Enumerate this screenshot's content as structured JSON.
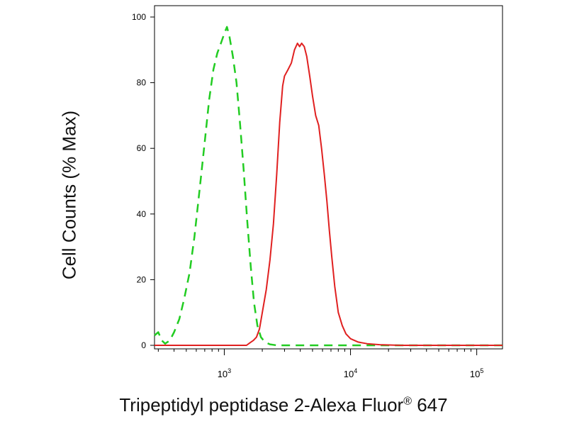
{
  "chart_data": {
    "type": "line",
    "ylabel": "Cell Counts (% Max)",
    "xlabel": {
      "text": "Tripeptidyl peptidase 2-Alexa Fluor",
      "superscript": "®",
      "suffix": " 647"
    },
    "x_scale": "log",
    "xlim": [
      280,
      160000
    ],
    "ylim": [
      0,
      100
    ],
    "y_ticks": [
      0,
      20,
      40,
      60,
      80,
      100
    ],
    "x_ticks": [
      {
        "value": 1000,
        "base": "10",
        "exp": "3"
      },
      {
        "value": 10000,
        "base": "10",
        "exp": "4"
      },
      {
        "value": 100000,
        "base": "10",
        "exp": "5"
      }
    ],
    "grid": false,
    "series": [
      {
        "color": "#22cc22",
        "style": "dashed",
        "points": [
          [
            280,
            3
          ],
          [
            300,
            4
          ],
          [
            320,
            1.5
          ],
          [
            340,
            0.5
          ],
          [
            370,
            1.5
          ],
          [
            400,
            4
          ],
          [
            440,
            8
          ],
          [
            480,
            14
          ],
          [
            530,
            22
          ],
          [
            580,
            33
          ],
          [
            640,
            48
          ],
          [
            700,
            62
          ],
          [
            760,
            75
          ],
          [
            820,
            84
          ],
          [
            880,
            89
          ],
          [
            940,
            92
          ],
          [
            1000,
            95
          ],
          [
            1050,
            97
          ],
          [
            1100,
            94
          ],
          [
            1170,
            88
          ],
          [
            1250,
            80
          ],
          [
            1330,
            68
          ],
          [
            1420,
            54
          ],
          [
            1520,
            38
          ],
          [
            1620,
            24
          ],
          [
            1720,
            13
          ],
          [
            1830,
            6
          ],
          [
            1950,
            2.5
          ],
          [
            2100,
            1
          ],
          [
            2300,
            0.3
          ],
          [
            2600,
            0
          ],
          [
            3500,
            0
          ],
          [
            10000,
            0
          ],
          [
            160000,
            0
          ]
        ]
      },
      {
        "color": "#e02020",
        "style": "solid",
        "points": [
          [
            280,
            0
          ],
          [
            1500,
            0
          ],
          [
            1600,
            0.8
          ],
          [
            1700,
            1.5
          ],
          [
            1800,
            2.5
          ],
          [
            1900,
            5
          ],
          [
            2000,
            10
          ],
          [
            2150,
            17
          ],
          [
            2300,
            26
          ],
          [
            2450,
            37
          ],
          [
            2600,
            52
          ],
          [
            2750,
            68
          ],
          [
            2900,
            79
          ],
          [
            3000,
            82
          ],
          [
            3200,
            84
          ],
          [
            3400,
            86
          ],
          [
            3600,
            90
          ],
          [
            3800,
            92
          ],
          [
            3950,
            91
          ],
          [
            4100,
            92
          ],
          [
            4300,
            91
          ],
          [
            4500,
            88
          ],
          [
            4750,
            82
          ],
          [
            5000,
            76
          ],
          [
            5300,
            70
          ],
          [
            5600,
            67
          ],
          [
            5900,
            60
          ],
          [
            6200,
            52
          ],
          [
            6500,
            44
          ],
          [
            6800,
            35
          ],
          [
            7100,
            27
          ],
          [
            7500,
            18
          ],
          [
            8000,
            10
          ],
          [
            8600,
            6
          ],
          [
            9200,
            3.5
          ],
          [
            10000,
            2
          ],
          [
            11500,
            1
          ],
          [
            13500,
            0.5
          ],
          [
            17000,
            0.2
          ],
          [
            25000,
            0
          ],
          [
            160000,
            0
          ]
        ]
      }
    ]
  }
}
